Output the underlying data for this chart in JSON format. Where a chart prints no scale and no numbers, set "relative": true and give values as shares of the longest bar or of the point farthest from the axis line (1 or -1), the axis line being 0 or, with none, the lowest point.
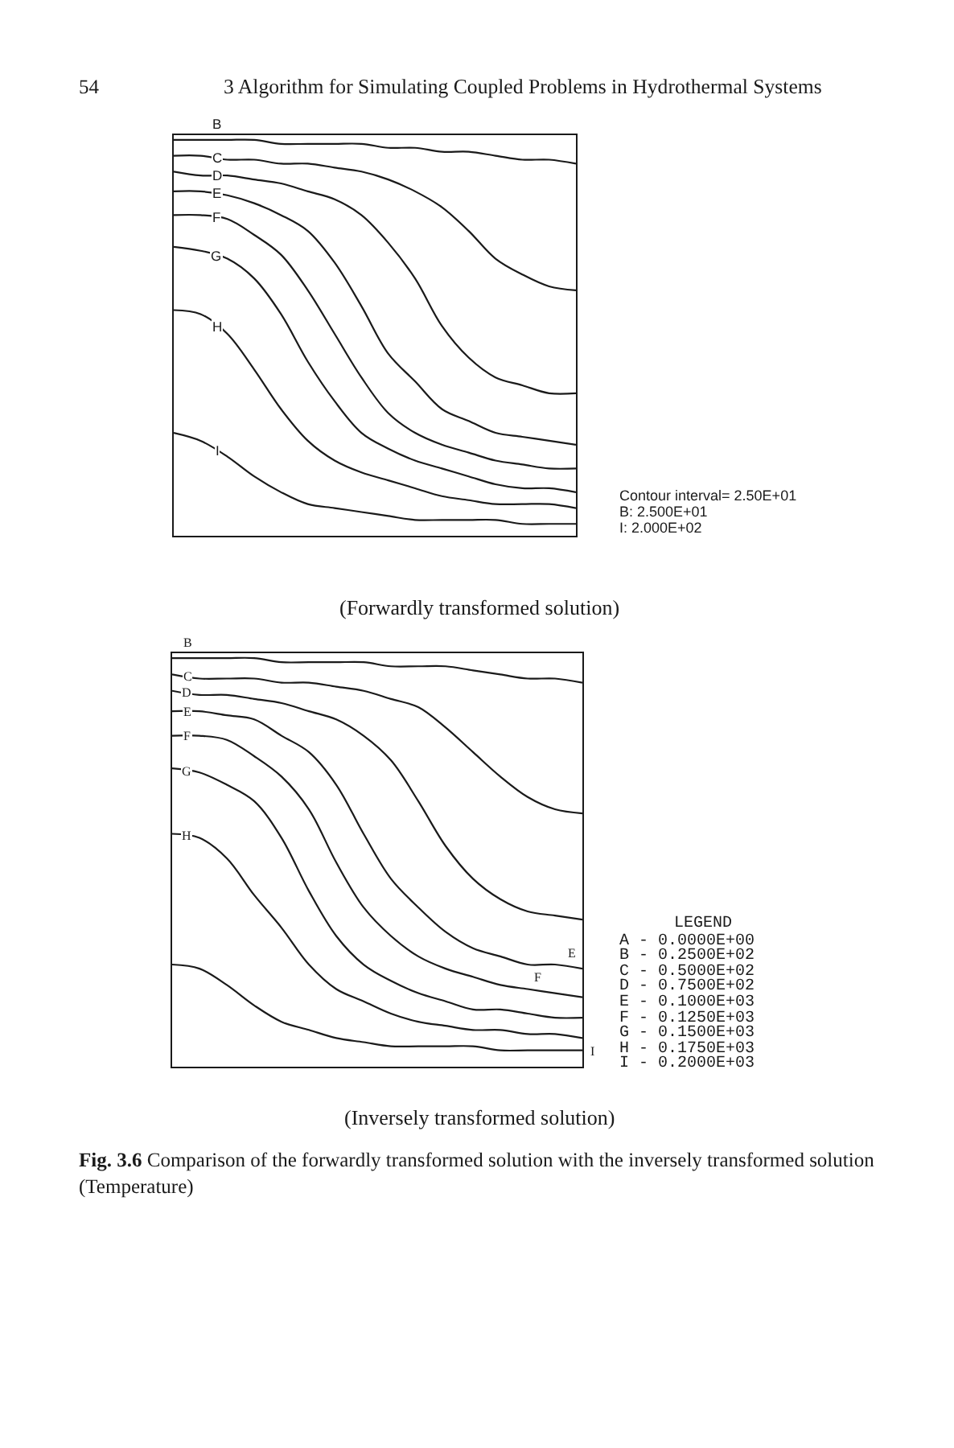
{
  "chart_data": [
    {
      "type": "line",
      "relative": true,
      "title": "(Forwardly transformed solution)",
      "categories": [
        null,
        null,
        null,
        null,
        null,
        null,
        null,
        null,
        null,
        null,
        null,
        null,
        null,
        null,
        null,
        null
      ],
      "series": [
        {
          "name": "B",
          "color": "#1a1a1a",
          "values": [
            1.0,
            1.0,
            1.0,
            1.0,
            0.99,
            0.99,
            0.99,
            0.99,
            0.98,
            0.98,
            0.97,
            0.97,
            0.96,
            0.95,
            0.95,
            0.94
          ]
        },
        {
          "name": "C",
          "color": "#1a1a1a",
          "values": [
            0.96,
            0.96,
            0.95,
            0.95,
            0.94,
            0.94,
            0.93,
            0.92,
            0.9,
            0.87,
            0.83,
            0.77,
            0.7,
            0.66,
            0.63,
            0.62
          ]
        },
        {
          "name": "D",
          "color": "#1a1a1a",
          "values": [
            0.92,
            0.91,
            0.91,
            0.9,
            0.89,
            0.87,
            0.85,
            0.81,
            0.74,
            0.65,
            0.53,
            0.45,
            0.4,
            0.38,
            0.36,
            0.36
          ]
        },
        {
          "name": "E",
          "color": "#1a1a1a",
          "values": [
            0.87,
            0.87,
            0.86,
            0.84,
            0.81,
            0.77,
            0.69,
            0.58,
            0.46,
            0.39,
            0.32,
            0.29,
            0.26,
            0.25,
            0.24,
            0.23
          ]
        },
        {
          "name": "F",
          "color": "#1a1a1a",
          "values": [
            0.81,
            0.81,
            0.8,
            0.76,
            0.71,
            0.62,
            0.51,
            0.4,
            0.31,
            0.26,
            0.23,
            0.21,
            0.19,
            0.18,
            0.17,
            0.17
          ]
        },
        {
          "name": "G",
          "color": "#1a1a1a",
          "values": [
            0.73,
            0.72,
            0.7,
            0.65,
            0.56,
            0.44,
            0.34,
            0.26,
            0.22,
            0.19,
            0.17,
            0.15,
            0.13,
            0.12,
            0.12,
            0.11
          ]
        },
        {
          "name": "H",
          "color": "#1a1a1a",
          "values": [
            0.57,
            0.56,
            0.51,
            0.42,
            0.32,
            0.24,
            0.19,
            0.16,
            0.14,
            0.12,
            0.1,
            0.09,
            0.08,
            0.08,
            0.08,
            0.07
          ]
        },
        {
          "name": "I",
          "color": "#1a1a1a",
          "values": [
            0.26,
            0.24,
            0.2,
            0.15,
            0.11,
            0.08,
            0.07,
            0.06,
            0.05,
            0.04,
            0.04,
            0.04,
            0.04,
            0.03,
            0.03,
            0.03
          ]
        }
      ],
      "annotations": [
        "54",
        "3 Algorithm for Simulating Coupled Problems in Hydrothermal Systems",
        "Contour interval= 2.50E+01",
        "B: 2.500E+01",
        "I: 2.000E+02"
      ]
    },
    {
      "type": "line",
      "relative": true,
      "title": "(Inversely transformed solution)",
      "categories": [
        null,
        null,
        null,
        null,
        null,
        null,
        null,
        null,
        null,
        null,
        null,
        null,
        null,
        null,
        null,
        null
      ],
      "series": [
        {
          "name": "B",
          "color": "#1a1a1a",
          "values": [
            1.0,
            1.0,
            1.0,
            1.0,
            0.99,
            0.99,
            0.99,
            0.99,
            0.98,
            0.98,
            0.98,
            0.97,
            0.96,
            0.95,
            0.95,
            0.94
          ]
        },
        {
          "name": "C",
          "color": "#1a1a1a",
          "values": [
            0.96,
            0.95,
            0.95,
            0.95,
            0.94,
            0.94,
            0.93,
            0.92,
            0.9,
            0.88,
            0.83,
            0.77,
            0.71,
            0.66,
            0.63,
            0.62
          ]
        },
        {
          "name": "D",
          "color": "#1a1a1a",
          "values": [
            0.92,
            0.91,
            0.91,
            0.9,
            0.89,
            0.87,
            0.85,
            0.81,
            0.75,
            0.65,
            0.54,
            0.46,
            0.41,
            0.38,
            0.37,
            0.36
          ]
        },
        {
          "name": "E",
          "color": "#1a1a1a",
          "values": [
            0.87,
            0.87,
            0.86,
            0.85,
            0.81,
            0.77,
            0.69,
            0.57,
            0.46,
            0.39,
            0.33,
            0.29,
            0.27,
            0.25,
            0.25,
            0.24
          ]
        },
        {
          "name": "F",
          "color": "#1a1a1a",
          "values": [
            0.81,
            0.81,
            0.8,
            0.76,
            0.71,
            0.63,
            0.5,
            0.39,
            0.32,
            0.27,
            0.24,
            0.22,
            0.2,
            0.19,
            0.18,
            0.17
          ]
        },
        {
          "name": "G",
          "color": "#1a1a1a",
          "values": [
            0.73,
            0.72,
            0.69,
            0.65,
            0.56,
            0.43,
            0.32,
            0.25,
            0.21,
            0.18,
            0.16,
            0.14,
            0.14,
            0.13,
            0.12,
            0.12
          ]
        },
        {
          "name": "H",
          "color": "#1a1a1a",
          "values": [
            0.57,
            0.56,
            0.51,
            0.42,
            0.34,
            0.25,
            0.19,
            0.16,
            0.13,
            0.11,
            0.1,
            0.09,
            0.09,
            0.08,
            0.08,
            0.07
          ]
        },
        {
          "color": "#1a1a1a",
          "values": [
            0.25,
            0.24,
            0.2,
            0.15,
            0.11,
            0.09,
            0.07,
            0.06,
            0.05,
            0.05,
            0.05,
            0.05,
            0.04,
            0.04,
            0.04,
            0.04
          ]
        }
      ],
      "annotations": [
        "E",
        "F",
        "I",
        "LEGEND",
        "A - 0.0000E+00",
        "B - 0.2500E+02",
        "C - 0.5000E+02",
        "D - 0.7500E+02",
        "E - 0.1000E+03",
        "F - 0.1250E+03",
        "G - 0.1500E+03",
        "H - 0.1750E+03",
        "I - 0.2000E+03",
        "Fig. 3.6 Comparison of the forwardly transformed solution with the inversely transformed solution (Temperature)"
      ]
    }
  ]
}
